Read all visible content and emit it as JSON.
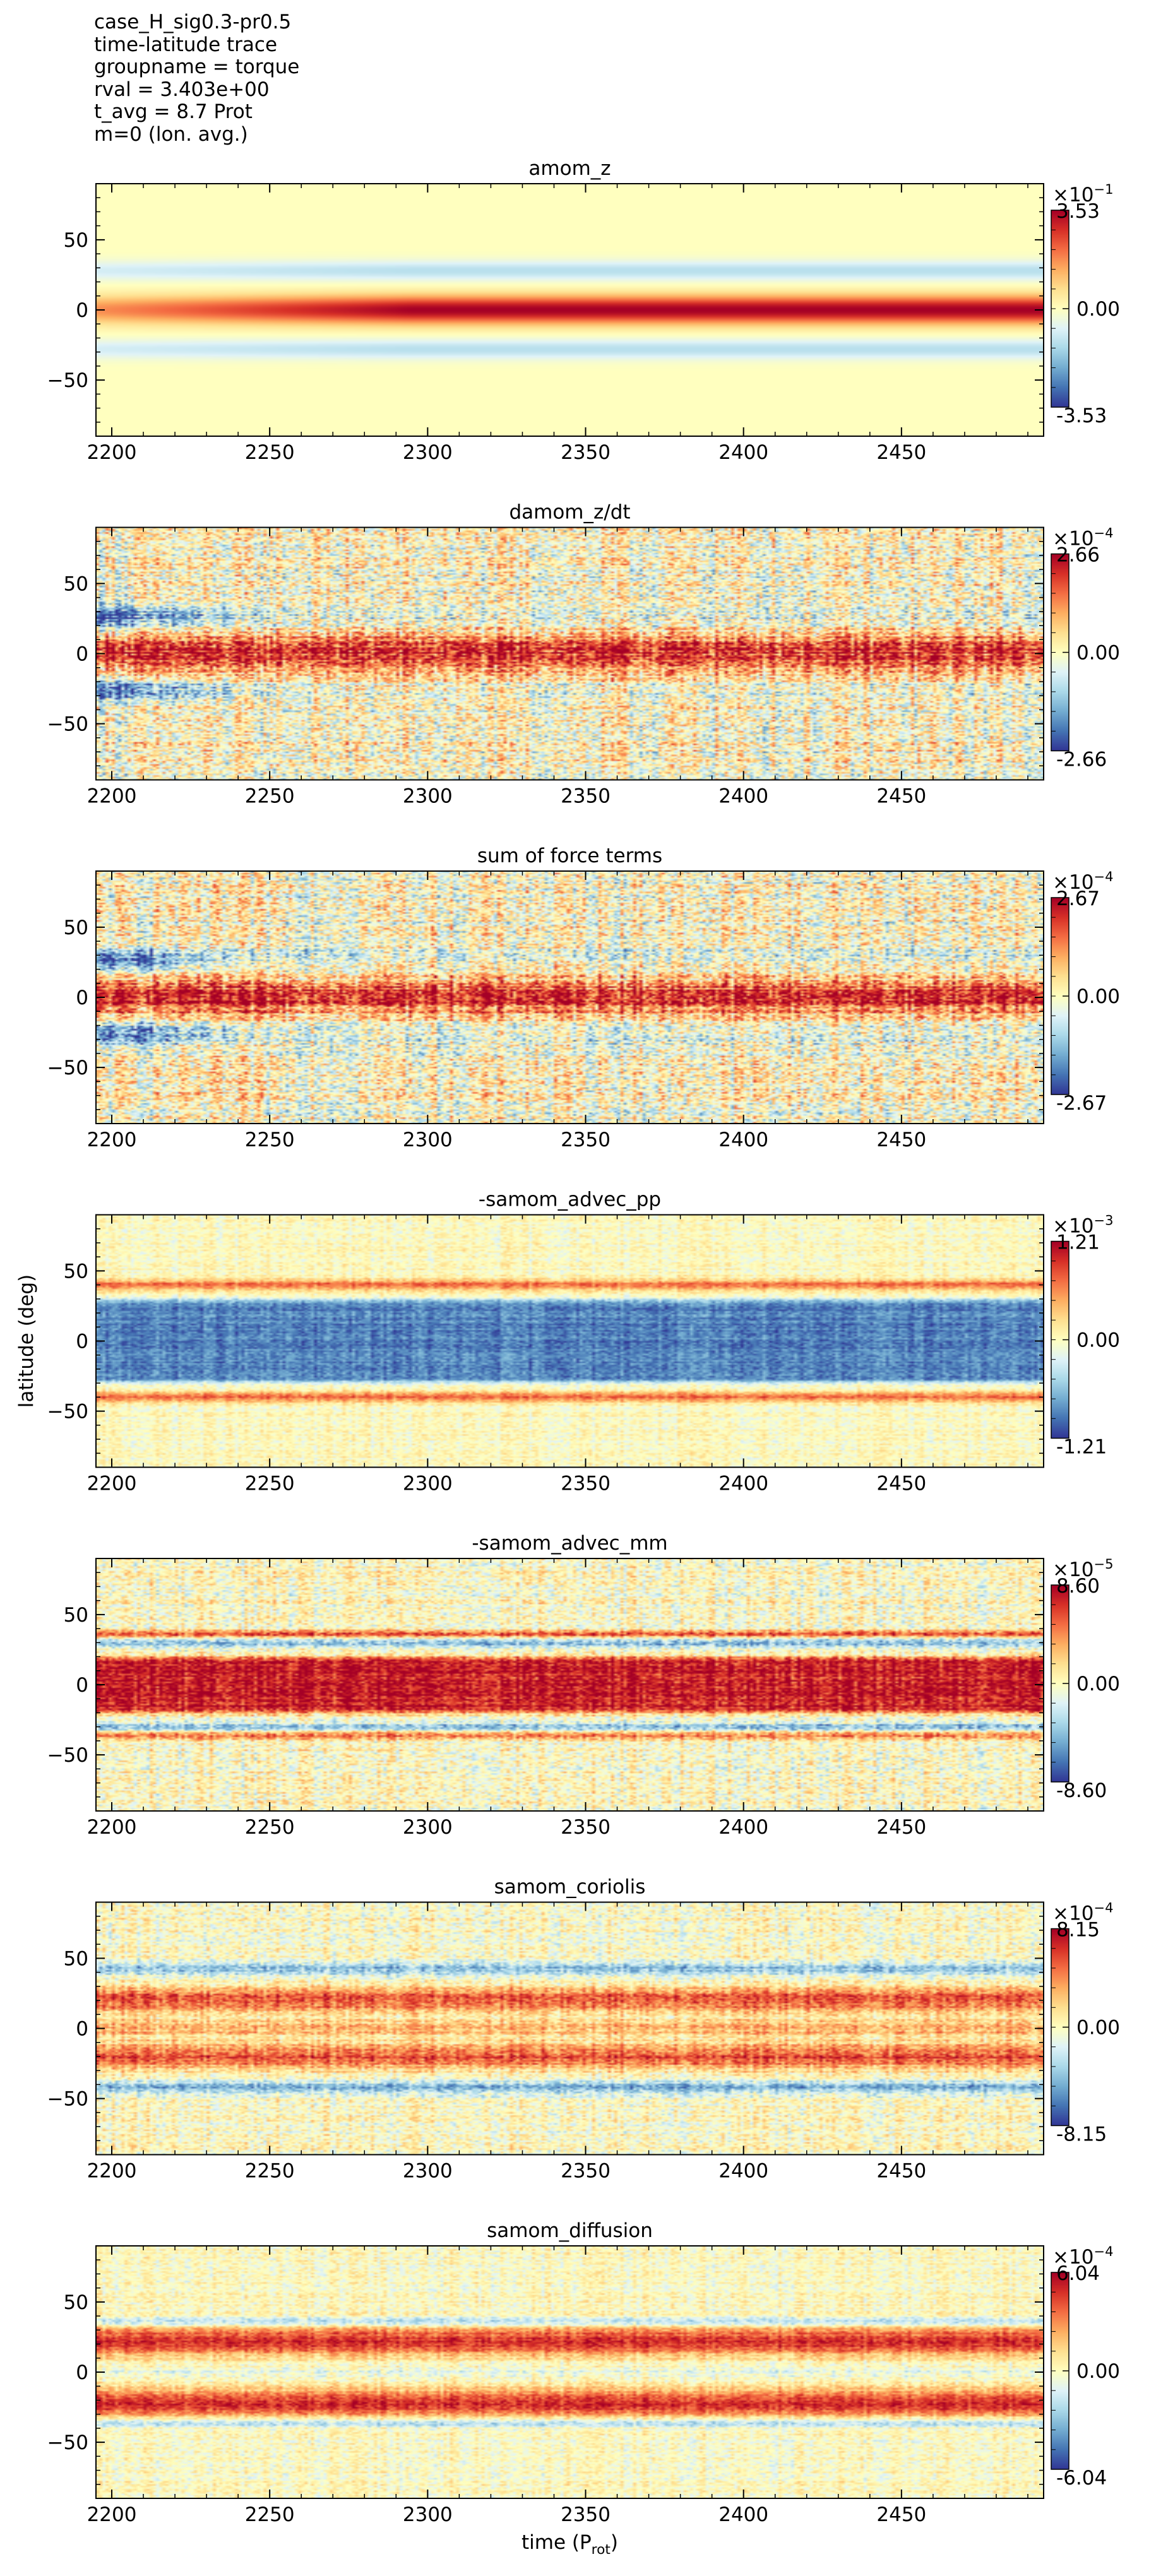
{
  "header": {
    "lines": [
      "case_H_sig0.3-pr0.5",
      "time-latitude trace",
      "groupname = torque",
      "rval = 3.403e+00",
      "t_avg = 8.7 Prot",
      "m=0 (lon. avg.)"
    ]
  },
  "colors": {
    "colormap": "RdYlBu_r",
    "negative": "#313695",
    "zero": "#ffffbf",
    "positive": "#a50026"
  },
  "chart_data": [
    {
      "type": "heatmap",
      "title": "amom_z",
      "xlabel": "",
      "ylabel": "",
      "xlim": [
        2195,
        2495
      ],
      "ylim": [
        -90,
        90
      ],
      "xticks": [
        2200,
        2250,
        2300,
        2350,
        2400,
        2450
      ],
      "yticks": [
        -50,
        0,
        50
      ],
      "colorbar": {
        "exponent_label": "×10",
        "exponent": "−1",
        "max": "3.53",
        "mid": "0.00",
        "min": "-3.53",
        "max_value": 0.353
      },
      "pattern": "smooth",
      "bands": [
        {
          "lat": 0,
          "width": 10,
          "amp": 1.0,
          "grow": 0.5
        },
        {
          "lat": 28,
          "width": 7,
          "amp": -0.35,
          "grow": 0.3
        },
        {
          "lat": -28,
          "width": 7,
          "amp": -0.35,
          "grow": 0.3
        }
      ],
      "noise": 0.0
    },
    {
      "type": "heatmap",
      "title": "damom_z/dt",
      "xlabel": "",
      "ylabel": "",
      "xlim": [
        2195,
        2495
      ],
      "ylim": [
        -90,
        90
      ],
      "xticks": [
        2200,
        2250,
        2300,
        2350,
        2400,
        2450
      ],
      "yticks": [
        -50,
        0,
        50
      ],
      "colorbar": {
        "exponent_label": "×10",
        "exponent": "−4",
        "max": "2.66",
        "mid": "0.00",
        "min": "-2.66",
        "max_value": 0.000266
      },
      "pattern": "noisy",
      "bands": [
        {
          "lat": 0,
          "width": 14,
          "amp": 0.8,
          "grow": 0
        },
        {
          "lat": 26,
          "width": 8,
          "amp": -0.9,
          "grow": 0,
          "early": true
        },
        {
          "lat": -26,
          "width": 8,
          "amp": -0.9,
          "grow": 0,
          "early": true
        }
      ],
      "noise": 0.7
    },
    {
      "type": "heatmap",
      "title": "sum of force terms",
      "xlabel": "",
      "ylabel": "",
      "xlim": [
        2195,
        2495
      ],
      "ylim": [
        -90,
        90
      ],
      "xticks": [
        2200,
        2250,
        2300,
        2350,
        2400,
        2450
      ],
      "yticks": [
        -50,
        0,
        50
      ],
      "colorbar": {
        "exponent_label": "×10",
        "exponent": "−4",
        "max": "2.67",
        "mid": "0.00",
        "min": "-2.67",
        "max_value": 0.000267
      },
      "pattern": "noisy",
      "bands": [
        {
          "lat": 0,
          "width": 14,
          "amp": 0.8,
          "grow": 0
        },
        {
          "lat": 26,
          "width": 8,
          "amp": -0.9,
          "grow": 0,
          "early": true
        },
        {
          "lat": -26,
          "width": 8,
          "amp": -0.9,
          "grow": 0,
          "early": true
        }
      ],
      "noise": 0.7
    },
    {
      "type": "heatmap",
      "title": "-samom_advec_pp",
      "xlabel": "",
      "ylabel": "latitude (deg)",
      "xlim": [
        2195,
        2495
      ],
      "ylim": [
        -90,
        90
      ],
      "xticks": [
        2200,
        2250,
        2300,
        2350,
        2400,
        2450
      ],
      "yticks": [
        -50,
        0,
        50
      ],
      "colorbar": {
        "exponent_label": "×10",
        "exponent": "−3",
        "max": "1.21",
        "mid": "0.00",
        "min": "-1.21",
        "max_value": 0.00121
      },
      "pattern": "blueband",
      "bands": [
        {
          "lat": 0,
          "width": 26,
          "amp": -0.75,
          "grow": 0,
          "flat": true
        },
        {
          "lat": 40,
          "width": 4,
          "amp": 0.6,
          "grow": 0
        },
        {
          "lat": -40,
          "width": 4,
          "amp": 0.6,
          "grow": 0
        }
      ],
      "noise": 0.25
    },
    {
      "type": "heatmap",
      "title": "-samom_advec_mm",
      "xlabel": "",
      "ylabel": "",
      "xlim": [
        2195,
        2495
      ],
      "ylim": [
        -90,
        90
      ],
      "xticks": [
        2200,
        2250,
        2300,
        2350,
        2400,
        2450
      ],
      "yticks": [
        -50,
        0,
        50
      ],
      "colorbar": {
        "exponent_label": "×10",
        "exponent": "−5",
        "max": "8.60",
        "mid": "0.00",
        "min": "-8.60",
        "max_value": 8.6e-05
      },
      "pattern": "streaky",
      "bands": [
        {
          "lat": 0,
          "width": 16,
          "amp": 0.9,
          "grow": 0,
          "flat": true
        },
        {
          "lat": 30,
          "width": 3,
          "amp": -0.5,
          "grow": 0
        },
        {
          "lat": -30,
          "width": 3,
          "amp": -0.5,
          "grow": 0
        },
        {
          "lat": 36,
          "width": 3,
          "amp": 0.6,
          "grow": 0
        },
        {
          "lat": -36,
          "width": 3,
          "amp": 0.6,
          "grow": 0
        }
      ],
      "noise": 0.45
    },
    {
      "type": "heatmap",
      "title": "samom_coriolis",
      "xlabel": "",
      "ylabel": "",
      "xlim": [
        2195,
        2495
      ],
      "ylim": [
        -90,
        90
      ],
      "xticks": [
        2200,
        2250,
        2300,
        2350,
        2400,
        2450
      ],
      "yticks": [
        -50,
        0,
        50
      ],
      "colorbar": {
        "exponent_label": "×10",
        "exponent": "−4",
        "max": "8.15",
        "mid": "0.00",
        "min": "-8.15",
        "max_value": 0.000815
      },
      "pattern": "streaky",
      "bands": [
        {
          "lat": 20,
          "width": 9,
          "amp": 0.7,
          "grow": 0
        },
        {
          "lat": -20,
          "width": 9,
          "amp": 0.7,
          "grow": 0
        },
        {
          "lat": 0,
          "width": 6,
          "amp": 0.4,
          "grow": 0
        },
        {
          "lat": 42,
          "width": 5,
          "amp": -0.5,
          "grow": 0
        },
        {
          "lat": -42,
          "width": 5,
          "amp": -0.5,
          "grow": 0
        }
      ],
      "noise": 0.4
    },
    {
      "type": "heatmap",
      "title": "samom_diffusion",
      "xlabel": "time (P",
      "xlabel_sub": "rot",
      "xlabel_end": ")",
      "ylabel": "",
      "xlim": [
        2195,
        2495
      ],
      "ylim": [
        -90,
        90
      ],
      "xticks": [
        2200,
        2250,
        2300,
        2350,
        2400,
        2450
      ],
      "yticks": [
        -50,
        0,
        50
      ],
      "colorbar": {
        "exponent_label": "×10",
        "exponent": "−4",
        "max": "6.04",
        "mid": "0.00",
        "min": "-6.04",
        "max_value": 0.000604
      },
      "pattern": "streaky",
      "bands": [
        {
          "lat": 22,
          "width": 10,
          "amp": 0.8,
          "grow": 0
        },
        {
          "lat": -22,
          "width": 10,
          "amp": 0.8,
          "grow": 0
        },
        {
          "lat": 0,
          "width": 4,
          "amp": -0.15,
          "grow": 0
        },
        {
          "lat": 36,
          "width": 3,
          "amp": -0.45,
          "grow": 0
        },
        {
          "lat": -36,
          "width": 3,
          "amp": -0.45,
          "grow": 0
        }
      ],
      "noise": 0.3
    }
  ]
}
